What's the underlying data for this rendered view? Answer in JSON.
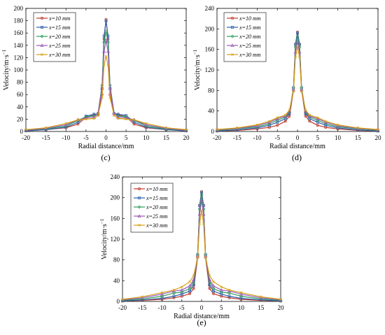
{
  "chart_data": [
    {
      "type": "line",
      "panel_label": "(c)",
      "xlabel": "Radial distance/mm",
      "ylabel": "Velocity/m·s",
      "ylabel_sup": "−1",
      "xlim": [
        -20,
        20
      ],
      "ylim": [
        0,
        200
      ],
      "xticks": [
        -20,
        -15,
        -10,
        -5,
        0,
        5,
        10,
        15,
        20
      ],
      "yticks": [
        0,
        20,
        40,
        60,
        80,
        100,
        120,
        140,
        160,
        180,
        200
      ],
      "x": [
        -20,
        -15,
        -10,
        -7,
        -5,
        -3,
        -2,
        -1,
        -0.5,
        0,
        0.5,
        1,
        2,
        3,
        5,
        7,
        10,
        15,
        20
      ],
      "series": [
        {
          "name": "x=10 mm",
          "color": "#c0392b",
          "values": [
            1,
            3,
            6,
            12,
            23,
            27,
            27,
            60,
            150,
            182,
            150,
            60,
            28,
            27,
            24,
            12,
            6,
            3,
            1
          ]
        },
        {
          "name": "x=15 mm",
          "color": "#2c5fa8",
          "values": [
            1,
            3,
            7,
            15,
            25,
            28,
            28,
            70,
            155,
            180,
            155,
            70,
            29,
            28,
            26,
            15,
            7,
            3,
            1
          ]
        },
        {
          "name": "x=20 mm",
          "color": "#2e9c5c",
          "values": [
            2,
            4,
            9,
            18,
            24,
            25,
            30,
            75,
            145,
            162,
            145,
            75,
            30,
            25,
            24,
            18,
            9,
            4,
            2
          ]
        },
        {
          "name": "x=25 mm",
          "color": "#9b59b6",
          "values": [
            2,
            5,
            11,
            19,
            22,
            23,
            30,
            70,
            130,
            148,
            130,
            70,
            30,
            23,
            22,
            19,
            11,
            5,
            2
          ]
        },
        {
          "name": "x=30 mm",
          "color": "#d4a017",
          "values": [
            3,
            6,
            13,
            19,
            20,
            21,
            26,
            55,
            108,
            122,
            108,
            55,
            26,
            21,
            20,
            19,
            13,
            6,
            3
          ]
        }
      ]
    },
    {
      "type": "line",
      "panel_label": "(d)",
      "xlabel": "Radial distance/mm",
      "ylabel": "Velocity/m·s",
      "ylabel_sup": "−1",
      "xlim": [
        -20,
        20
      ],
      "ylim": [
        0,
        240
      ],
      "xticks": [
        -20,
        -15,
        -10,
        -5,
        0,
        5,
        10,
        15,
        20
      ],
      "yticks": [
        0,
        40,
        80,
        120,
        160,
        200,
        240
      ],
      "x": [
        -20,
        -15,
        -10,
        -7,
        -5,
        -3,
        -2,
        -1,
        -0.5,
        0,
        0.5,
        1,
        2,
        3,
        5,
        7,
        10,
        15,
        20
      ],
      "series": [
        {
          "name": "x=10 mm",
          "color": "#c0392b",
          "values": [
            1,
            2,
            5,
            8,
            12,
            20,
            30,
            80,
            170,
            194,
            170,
            80,
            30,
            20,
            12,
            8,
            5,
            2,
            1
          ]
        },
        {
          "name": "x=15 mm",
          "color": "#2c5fa8",
          "values": [
            1,
            3,
            7,
            12,
            18,
            25,
            35,
            85,
            170,
            192,
            170,
            85,
            35,
            25,
            18,
            12,
            7,
            3,
            1
          ]
        },
        {
          "name": "x=20 mm",
          "color": "#2e9c5c",
          "values": [
            2,
            5,
            9,
            15,
            22,
            28,
            38,
            85,
            165,
            185,
            165,
            85,
            38,
            28,
            22,
            15,
            9,
            5,
            2
          ]
        },
        {
          "name": "x=25 mm",
          "color": "#9b59b6",
          "values": [
            3,
            6,
            11,
            18,
            25,
            30,
            40,
            82,
            155,
            175,
            155,
            82,
            40,
            30,
            25,
            18,
            11,
            6,
            3
          ]
        },
        {
          "name": "x=30 mm",
          "color": "#d4a017",
          "values": [
            4,
            7,
            13,
            20,
            27,
            32,
            42,
            78,
            145,
            165,
            145,
            78,
            42,
            32,
            27,
            20,
            13,
            7,
            4
          ]
        }
      ]
    },
    {
      "type": "line",
      "panel_label": "(e)",
      "xlabel": "Radial distance/mm",
      "ylabel": "Velocity/m·s",
      "ylabel_sup": "−1",
      "xlim": [
        -20,
        20
      ],
      "ylim": [
        0,
        240
      ],
      "xticks": [
        -20,
        -15,
        -10,
        -5,
        0,
        5,
        10,
        15,
        20
      ],
      "yticks": [
        0,
        40,
        80,
        120,
        160,
        200,
        240
      ],
      "x": [
        -20,
        -15,
        -10,
        -7,
        -5,
        -3,
        -2,
        -1,
        -0.5,
        0,
        0.5,
        1,
        2,
        3,
        5,
        7,
        10,
        15,
        20
      ],
      "series": [
        {
          "name": "x=10 mm",
          "color": "#c0392b",
          "values": [
            1,
            2,
            4,
            7,
            10,
            15,
            25,
            85,
            185,
            212,
            185,
            85,
            25,
            15,
            10,
            7,
            4,
            2,
            1
          ]
        },
        {
          "name": "x=15 mm",
          "color": "#2c5fa8",
          "values": [
            1,
            3,
            6,
            10,
            14,
            20,
            32,
            90,
            185,
            210,
            185,
            90,
            32,
            20,
            14,
            10,
            6,
            3,
            1
          ]
        },
        {
          "name": "x=20 mm",
          "color": "#2e9c5c",
          "values": [
            2,
            5,
            10,
            16,
            18,
            25,
            38,
            90,
            178,
            205,
            178,
            90,
            38,
            25,
            18,
            16,
            10,
            5,
            2
          ]
        },
        {
          "name": "x=25 mm",
          "color": "#9b59b6",
          "values": [
            3,
            7,
            14,
            20,
            22,
            30,
            42,
            88,
            168,
            195,
            168,
            88,
            42,
            30,
            22,
            20,
            14,
            7,
            3
          ]
        },
        {
          "name": "x=30 mm",
          "color": "#d4a017",
          "values": [
            4,
            9,
            17,
            22,
            28,
            38,
            50,
            85,
            150,
            175,
            150,
            85,
            50,
            38,
            28,
            22,
            17,
            9,
            4
          ]
        }
      ]
    }
  ]
}
